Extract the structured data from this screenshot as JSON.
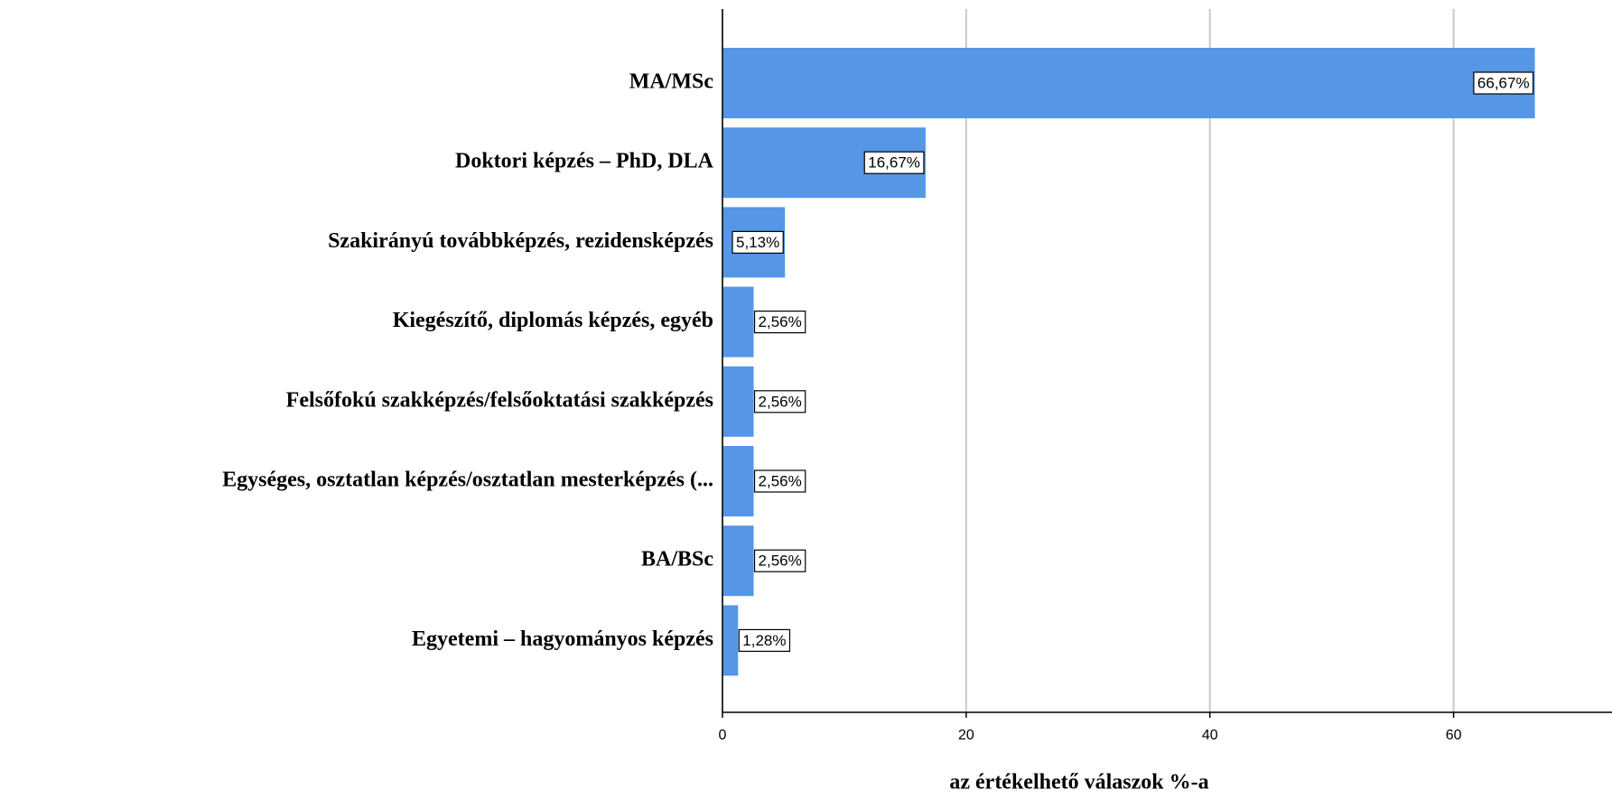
{
  "chart_data": {
    "type": "bar",
    "orientation": "horizontal",
    "x_label": "az értékelhető válaszok %-a",
    "categories": [
      "MA/MSc",
      "Doktori képzés – PhD, DLA",
      "Szakirányú továbbképzés, rezidensképzés",
      "Kiegészítő, diplomás képzés, egyéb",
      "Felsőfokú szakképzés/felsőoktatási szakképzés",
      "Egységes, osztatlan képzés/osztatlan mesterképzés (...",
      "BA/BSc",
      "Egyetemi – hagyományos képzés"
    ],
    "values": [
      66.67,
      16.67,
      5.13,
      2.56,
      2.56,
      2.56,
      2.56,
      1.28
    ],
    "value_labels": [
      "66,67%",
      "16,67%",
      "5,13%",
      "2,56%",
      "2,56%",
      "2,56%",
      "2,56%",
      "1,28%"
    ],
    "color": "#5596e6",
    "xlim": [
      0,
      73
    ],
    "xticks": [
      0,
      20,
      40,
      60
    ],
    "grid": true
  }
}
